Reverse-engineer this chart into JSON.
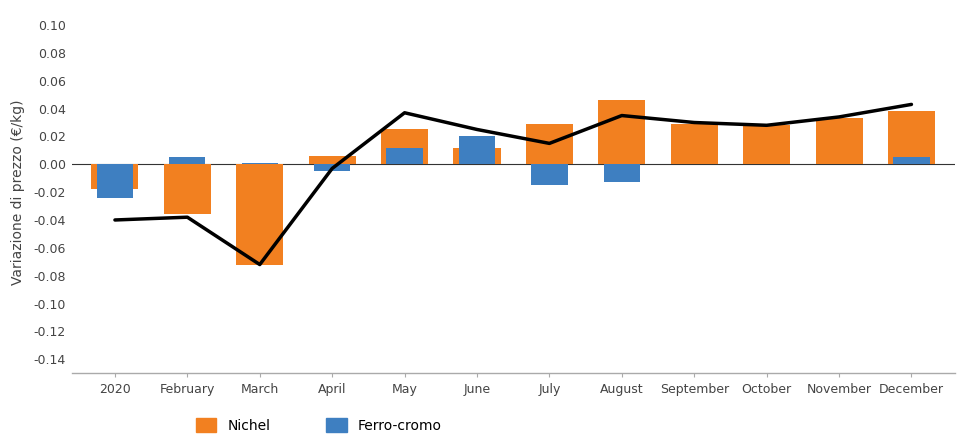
{
  "months": [
    "2020",
    "February",
    "March",
    "April",
    "May",
    "June",
    "July",
    "August",
    "September",
    "October",
    "November",
    "December"
  ],
  "nichel": [
    -0.018,
    -0.036,
    -0.072,
    0.006,
    0.025,
    0.012,
    0.029,
    0.046,
    0.029,
    0.028,
    0.033,
    0.038
  ],
  "ferro_cromo": [
    -0.024,
    0.005,
    0.001,
    -0.005,
    0.012,
    0.02,
    -0.015,
    -0.013,
    0.0,
    0.0,
    0.0,
    0.005
  ],
  "line": [
    -0.04,
    -0.038,
    -0.072,
    -0.003,
    0.037,
    0.025,
    0.015,
    0.035,
    0.03,
    0.028,
    0.034,
    0.043
  ],
  "ylabel": "Variazione di prezzo (€/kg)",
  "ylim": [
    -0.15,
    0.11
  ],
  "yticks": [
    -0.14,
    -0.12,
    -0.1,
    -0.08,
    -0.06,
    -0.04,
    -0.02,
    0.0,
    0.02,
    0.04,
    0.06,
    0.08,
    0.1
  ],
  "nichel_color": "#F28020",
  "ferro_color": "#3E7FC1",
  "line_color": "#000000",
  "nichel_label": "Nichel",
  "ferro_label": "Ferro-cromo",
  "background_color": "#ffffff",
  "spine_color": "#aaaaaa",
  "tick_color": "#444444",
  "label_fontsize": 10,
  "tick_fontsize": 9,
  "legend_fontsize": 10
}
